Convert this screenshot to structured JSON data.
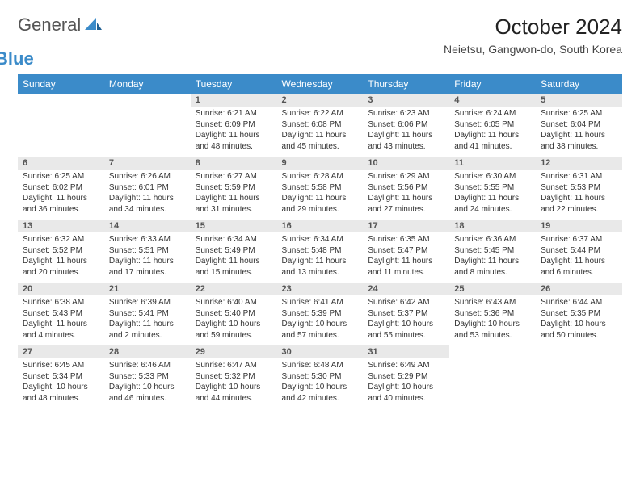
{
  "brand": {
    "general": "General",
    "blue": "Blue"
  },
  "title": {
    "month": "October 2024",
    "location": "Neietsu, Gangwon-do, South Korea"
  },
  "colors": {
    "header_bg": "#3b8bc9",
    "header_fg": "#ffffff",
    "daynum_bg": "#e9e9e9",
    "rule": "#3b6a8e",
    "text": "#333333"
  },
  "day_labels": [
    "Sunday",
    "Monday",
    "Tuesday",
    "Wednesday",
    "Thursday",
    "Friday",
    "Saturday"
  ],
  "weeks": [
    [
      null,
      null,
      {
        "n": "1",
        "sr": "Sunrise: 6:21 AM",
        "ss": "Sunset: 6:09 PM",
        "d1": "Daylight: 11 hours",
        "d2": "and 48 minutes."
      },
      {
        "n": "2",
        "sr": "Sunrise: 6:22 AM",
        "ss": "Sunset: 6:08 PM",
        "d1": "Daylight: 11 hours",
        "d2": "and 45 minutes."
      },
      {
        "n": "3",
        "sr": "Sunrise: 6:23 AM",
        "ss": "Sunset: 6:06 PM",
        "d1": "Daylight: 11 hours",
        "d2": "and 43 minutes."
      },
      {
        "n": "4",
        "sr": "Sunrise: 6:24 AM",
        "ss": "Sunset: 6:05 PM",
        "d1": "Daylight: 11 hours",
        "d2": "and 41 minutes."
      },
      {
        "n": "5",
        "sr": "Sunrise: 6:25 AM",
        "ss": "Sunset: 6:04 PM",
        "d1": "Daylight: 11 hours",
        "d2": "and 38 minutes."
      }
    ],
    [
      {
        "n": "6",
        "sr": "Sunrise: 6:25 AM",
        "ss": "Sunset: 6:02 PM",
        "d1": "Daylight: 11 hours",
        "d2": "and 36 minutes."
      },
      {
        "n": "7",
        "sr": "Sunrise: 6:26 AM",
        "ss": "Sunset: 6:01 PM",
        "d1": "Daylight: 11 hours",
        "d2": "and 34 minutes."
      },
      {
        "n": "8",
        "sr": "Sunrise: 6:27 AM",
        "ss": "Sunset: 5:59 PM",
        "d1": "Daylight: 11 hours",
        "d2": "and 31 minutes."
      },
      {
        "n": "9",
        "sr": "Sunrise: 6:28 AM",
        "ss": "Sunset: 5:58 PM",
        "d1": "Daylight: 11 hours",
        "d2": "and 29 minutes."
      },
      {
        "n": "10",
        "sr": "Sunrise: 6:29 AM",
        "ss": "Sunset: 5:56 PM",
        "d1": "Daylight: 11 hours",
        "d2": "and 27 minutes."
      },
      {
        "n": "11",
        "sr": "Sunrise: 6:30 AM",
        "ss": "Sunset: 5:55 PM",
        "d1": "Daylight: 11 hours",
        "d2": "and 24 minutes."
      },
      {
        "n": "12",
        "sr": "Sunrise: 6:31 AM",
        "ss": "Sunset: 5:53 PM",
        "d1": "Daylight: 11 hours",
        "d2": "and 22 minutes."
      }
    ],
    [
      {
        "n": "13",
        "sr": "Sunrise: 6:32 AM",
        "ss": "Sunset: 5:52 PM",
        "d1": "Daylight: 11 hours",
        "d2": "and 20 minutes."
      },
      {
        "n": "14",
        "sr": "Sunrise: 6:33 AM",
        "ss": "Sunset: 5:51 PM",
        "d1": "Daylight: 11 hours",
        "d2": "and 17 minutes."
      },
      {
        "n": "15",
        "sr": "Sunrise: 6:34 AM",
        "ss": "Sunset: 5:49 PM",
        "d1": "Daylight: 11 hours",
        "d2": "and 15 minutes."
      },
      {
        "n": "16",
        "sr": "Sunrise: 6:34 AM",
        "ss": "Sunset: 5:48 PM",
        "d1": "Daylight: 11 hours",
        "d2": "and 13 minutes."
      },
      {
        "n": "17",
        "sr": "Sunrise: 6:35 AM",
        "ss": "Sunset: 5:47 PM",
        "d1": "Daylight: 11 hours",
        "d2": "and 11 minutes."
      },
      {
        "n": "18",
        "sr": "Sunrise: 6:36 AM",
        "ss": "Sunset: 5:45 PM",
        "d1": "Daylight: 11 hours",
        "d2": "and 8 minutes."
      },
      {
        "n": "19",
        "sr": "Sunrise: 6:37 AM",
        "ss": "Sunset: 5:44 PM",
        "d1": "Daylight: 11 hours",
        "d2": "and 6 minutes."
      }
    ],
    [
      {
        "n": "20",
        "sr": "Sunrise: 6:38 AM",
        "ss": "Sunset: 5:43 PM",
        "d1": "Daylight: 11 hours",
        "d2": "and 4 minutes."
      },
      {
        "n": "21",
        "sr": "Sunrise: 6:39 AM",
        "ss": "Sunset: 5:41 PM",
        "d1": "Daylight: 11 hours",
        "d2": "and 2 minutes."
      },
      {
        "n": "22",
        "sr": "Sunrise: 6:40 AM",
        "ss": "Sunset: 5:40 PM",
        "d1": "Daylight: 10 hours",
        "d2": "and 59 minutes."
      },
      {
        "n": "23",
        "sr": "Sunrise: 6:41 AM",
        "ss": "Sunset: 5:39 PM",
        "d1": "Daylight: 10 hours",
        "d2": "and 57 minutes."
      },
      {
        "n": "24",
        "sr": "Sunrise: 6:42 AM",
        "ss": "Sunset: 5:37 PM",
        "d1": "Daylight: 10 hours",
        "d2": "and 55 minutes."
      },
      {
        "n": "25",
        "sr": "Sunrise: 6:43 AM",
        "ss": "Sunset: 5:36 PM",
        "d1": "Daylight: 10 hours",
        "d2": "and 53 minutes."
      },
      {
        "n": "26",
        "sr": "Sunrise: 6:44 AM",
        "ss": "Sunset: 5:35 PM",
        "d1": "Daylight: 10 hours",
        "d2": "and 50 minutes."
      }
    ],
    [
      {
        "n": "27",
        "sr": "Sunrise: 6:45 AM",
        "ss": "Sunset: 5:34 PM",
        "d1": "Daylight: 10 hours",
        "d2": "and 48 minutes."
      },
      {
        "n": "28",
        "sr": "Sunrise: 6:46 AM",
        "ss": "Sunset: 5:33 PM",
        "d1": "Daylight: 10 hours",
        "d2": "and 46 minutes."
      },
      {
        "n": "29",
        "sr": "Sunrise: 6:47 AM",
        "ss": "Sunset: 5:32 PM",
        "d1": "Daylight: 10 hours",
        "d2": "and 44 minutes."
      },
      {
        "n": "30",
        "sr": "Sunrise: 6:48 AM",
        "ss": "Sunset: 5:30 PM",
        "d1": "Daylight: 10 hours",
        "d2": "and 42 minutes."
      },
      {
        "n": "31",
        "sr": "Sunrise: 6:49 AM",
        "ss": "Sunset: 5:29 PM",
        "d1": "Daylight: 10 hours",
        "d2": "and 40 minutes."
      },
      null,
      null
    ]
  ]
}
